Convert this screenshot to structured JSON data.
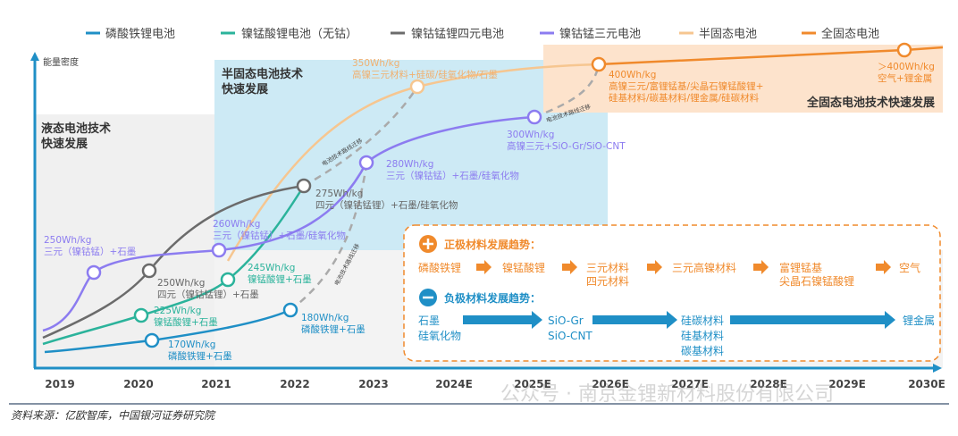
{
  "legend": [
    {
      "label": "磷酸铁锂电池",
      "color": "#1f8fc6"
    },
    {
      "label": "镍锰酸锂电池（无钴）",
      "color": "#2bb39b"
    },
    {
      "label": "镍钴锰锂四元电池",
      "color": "#6b6b6b"
    },
    {
      "label": "镍钴锰三元电池",
      "color": "#8c7cf0"
    },
    {
      "label": "半固态电池",
      "color": "#f6c690"
    },
    {
      "label": "全固态电池",
      "color": "#f08a2c"
    }
  ],
  "y_axis_label": "能量密度",
  "x_axis": [
    "2019",
    "2020",
    "2021",
    "2022",
    "2023",
    "2024E",
    "2025E",
    "2026E",
    "2027E",
    "2028E",
    "2029E",
    "2030E"
  ],
  "regions": {
    "liquid": [
      "液态电池技术",
      "快速发展"
    ],
    "semi_solid": [
      "半固态电池技术",
      "快速发展"
    ],
    "all_solid": "全固态电池技术快速发展"
  },
  "migration_label": "电池技术路线迁移",
  "points": {
    "lfp_170": [
      "170Wh/kg",
      "磷酸铁锂+石墨"
    ],
    "lfp_180": [
      "180Wh/kg",
      "磷酸铁锂+石墨"
    ],
    "lmo_225": [
      "225Wh/kg",
      "镍锰酸锂+石墨"
    ],
    "lmo_245": [
      "245Wh/kg",
      "镍锰酸锂+石墨"
    ],
    "quad_250": [
      "250Wh/kg",
      "四元（镍钴锰锂）+石墨"
    ],
    "quad_275": [
      "275Wh/kg",
      "四元（镍钴锰锂）+石墨/硅氧化物"
    ],
    "ncm_250": [
      "250Wh/kg",
      "三元（镍钴锰）+石墨"
    ],
    "ncm_260": [
      "260Wh/kg",
      "三元（镍钴锰）+石墨/硅氧化物"
    ],
    "ncm_280": [
      "280Wh/kg",
      "三元（镍钴锰）+石墨/硅氧化物"
    ],
    "ncm_300": [
      "300Wh/kg",
      "高镍三元+SiO-Gr/SiO-CNT"
    ],
    "semi_350": [
      "350Wh/kg",
      "高镍三元材料+硅碳/硅氧化物/石墨"
    ],
    "solid_400": [
      "400Wh/kg",
      "高镍三元/富锂锰基/尖晶石镍锰酸锂+",
      "硅基材料/碳基材料/锂金属/硅碳材料"
    ],
    "solid_400plus": [
      "＞400Wh/kg",
      "空气+锂金属"
    ]
  },
  "trends": {
    "cathode_title": "正极材料发展趋势：",
    "cathode_steps": [
      [
        "磷酸铁锂"
      ],
      [
        "镍锰酸锂"
      ],
      [
        "三元材料",
        "四元材料"
      ],
      [
        "三元高镍材料"
      ],
      [
        "富锂锰基",
        "尖晶石镍锰酸锂"
      ],
      [
        "空气"
      ]
    ],
    "anode_title": "负极材料发展趋势：",
    "anode_steps": [
      [
        "石墨",
        "硅氧化物"
      ],
      [
        "SiO-Gr",
        "SiO-CNT"
      ],
      [
        "硅碳材料",
        "硅基材料",
        "碳基材料"
      ],
      [
        "锂金属"
      ]
    ]
  },
  "source": "资料来源：亿欧智库，中国银河证券研究院",
  "watermark": "公众号 · 南京金锂新材料股份有限公司"
}
